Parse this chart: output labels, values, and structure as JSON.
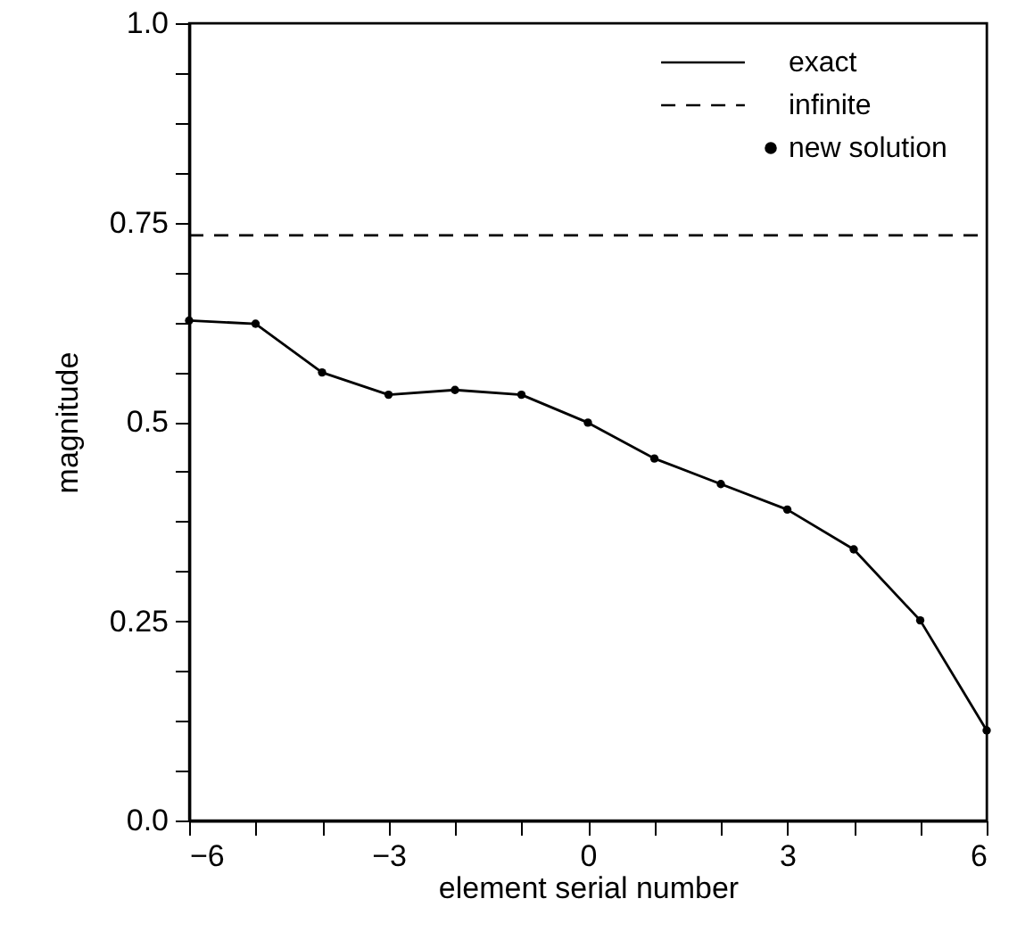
{
  "chart_data": {
    "type": "line",
    "xlabel": "element serial number",
    "ylabel": "magnitude",
    "xlim": [
      -6,
      6
    ],
    "ylim": [
      0,
      1
    ],
    "xticks": [
      -6,
      {
        "value": -5,
        "label": null
      },
      {
        "value": -4,
        "label": null
      },
      -3,
      {
        "value": -2,
        "label": null
      },
      {
        "value": -1,
        "label": null
      },
      0,
      {
        "value": 1,
        "label": null
      },
      {
        "value": 2,
        "label": null
      },
      3,
      {
        "value": 4,
        "label": null
      },
      {
        "value": 5,
        "label": null
      },
      6
    ],
    "yticks": [
      {
        "value": 0,
        "label": "0.0"
      },
      {
        "value": 0.0625,
        "label": null
      },
      {
        "value": 0.125,
        "label": null
      },
      {
        "value": 0.1875,
        "label": null
      },
      0.25,
      {
        "value": 0.3125,
        "label": null
      },
      {
        "value": 0.375,
        "label": null
      },
      {
        "value": 0.4375,
        "label": null
      },
      0.5,
      {
        "value": 0.5625,
        "label": null
      },
      {
        "value": 0.625,
        "label": null
      },
      {
        "value": 0.6875,
        "label": null
      },
      0.75,
      {
        "value": 0.8125,
        "label": null
      },
      {
        "value": 0.875,
        "label": null
      },
      {
        "value": 0.9375,
        "label": null
      },
      {
        "value": 1,
        "label": "1.0"
      }
    ],
    "grid": false,
    "legend": "top right",
    "series": [
      {
        "name": "exact",
        "type": "line",
        "line_style": "solid",
        "color": "#000000",
        "x": [
          -6,
          -5,
          -4,
          -3,
          -2,
          -1,
          0,
          1,
          2,
          3,
          4,
          5,
          6
        ],
        "values": [
          0.627,
          0.623,
          0.562,
          0.534,
          0.54,
          0.534,
          0.499,
          0.454,
          0.422,
          0.39,
          0.34,
          0.251,
          0.113
        ]
      },
      {
        "name": "infinite",
        "type": "line",
        "line_style": "dashed",
        "color": "#000000",
        "x": [
          -6,
          6
        ],
        "values": [
          0.734,
          0.734
        ]
      },
      {
        "name": "new solution",
        "type": "scatter",
        "marker": "circle",
        "color": "#000000",
        "x": [
          -6,
          -5,
          -4,
          -3,
          -2,
          -1,
          0,
          1,
          2,
          3,
          4,
          5,
          6
        ],
        "values": [
          0.627,
          0.623,
          0.562,
          0.534,
          0.54,
          0.534,
          0.499,
          0.454,
          0.422,
          0.39,
          0.34,
          0.251,
          0.113
        ]
      }
    ]
  }
}
